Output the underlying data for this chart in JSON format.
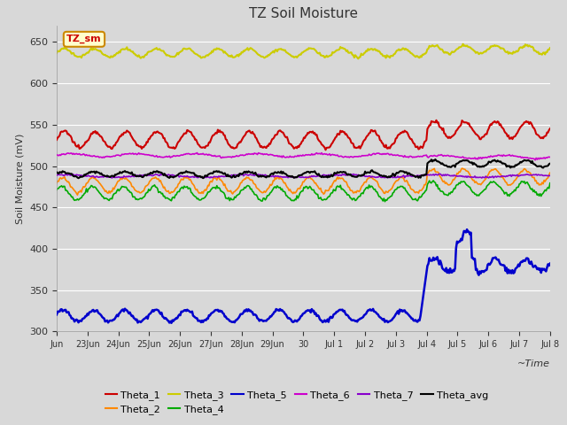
{
  "title": "TZ Soil Moisture",
  "xlabel": "~Time",
  "ylabel": "Soil Moisture (mV)",
  "ylim": [
    300,
    670
  ],
  "yticks": [
    300,
    350,
    400,
    450,
    500,
    550,
    600,
    650
  ],
  "bg_color": "#d8d8d8",
  "plot_bg_color": "#d8d8d8",
  "legend_label": "TZ_sm",
  "xtick_labels": [
    "Jun",
    "23Jun",
    "24Jun",
    "25Jun",
    "26Jun",
    "27Jun",
    "28Jun",
    "29Jun",
    "30",
    "Jul 1",
    "Jul 2",
    "Jul 3",
    "Jul 4",
    "Jul 5",
    "Jul 6",
    "Jul 7",
    "Jul 8"
  ],
  "xtick_positions": [
    0,
    1,
    2,
    3,
    4,
    5,
    6,
    7,
    8,
    9,
    10,
    11,
    12,
    13,
    14,
    15,
    16
  ],
  "series_colors": {
    "Theta_1": "#cc0000",
    "Theta_2": "#ff8800",
    "Theta_3": "#cccc00",
    "Theta_4": "#00aa00",
    "Theta_5": "#0000cc",
    "Theta_6": "#cc00cc",
    "Theta_7": "#8800cc",
    "Theta_avg": "#000000"
  }
}
